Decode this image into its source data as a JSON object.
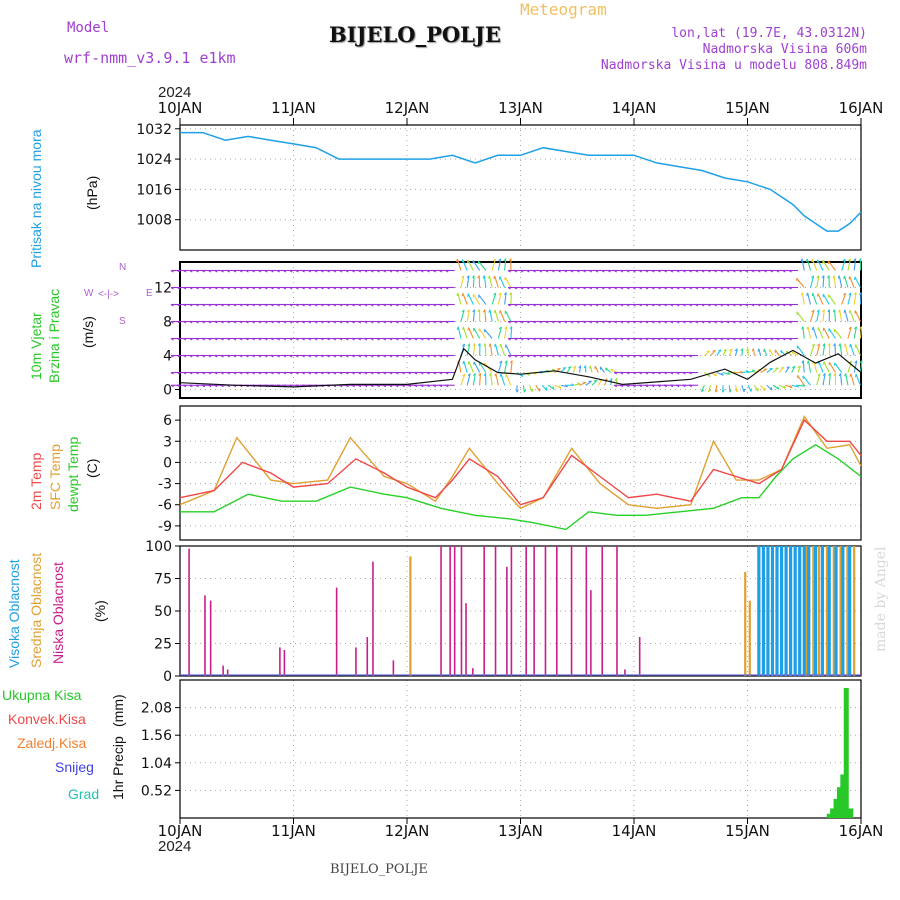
{
  "header": {
    "model_label": "Model",
    "model_name": "wrf-nmm_v3.9.1  e1km",
    "title": "BIJELO_POLJE",
    "subtitle": "Meteogram",
    "lonlat": "lon,lat (19.7E, 43.0312N)",
    "elevation": "Nadmorska Visina 606m",
    "model_elevation": "Nadmorska Visina u modelu 808.849m",
    "credit": "made by Angel",
    "footer": "BIJELO_POLJE",
    "year_top": "2024",
    "year_bottom": "2024"
  },
  "colors": {
    "pressure": "#1ea0e6",
    "wind_purple": "#9a30d8",
    "temp2m": "#f04848",
    "sfc": "#e0a030",
    "dewpt": "#28d028",
    "cloud_high": "#1ea0e6",
    "cloud_mid": "#e0a030",
    "cloud_low": "#c81e8c",
    "precip": "#28c828"
  },
  "chart_data": [
    {
      "type": "line",
      "ylabel": "Pritisak na nivou mora",
      "unit": "(hPa)",
      "yticks": [
        1008,
        1016,
        1024,
        1032
      ],
      "ylim": [
        1000,
        1033
      ],
      "x_labels": [
        "10JAN",
        "11JAN",
        "12JAN",
        "13JAN",
        "14JAN",
        "15JAN",
        "16JAN"
      ],
      "xlim": [
        0,
        6
      ],
      "series": [
        {
          "x": [
            0,
            0.2,
            0.4,
            0.6,
            0.8,
            1.0,
            1.2,
            1.4,
            1.6,
            1.8,
            2.0,
            2.2,
            2.4,
            2.6,
            2.8,
            3.0,
            3.2,
            3.4,
            3.6,
            3.8,
            4.0,
            4.2,
            4.4,
            4.6,
            4.8,
            5.0,
            5.2,
            5.4,
            5.5,
            5.6,
            5.7,
            5.8,
            5.9,
            6.0
          ],
          "y": [
            1031,
            1031,
            1029,
            1030,
            1029,
            1028,
            1027,
            1024,
            1024,
            1024,
            1024,
            1024,
            1025,
            1023,
            1025,
            1025,
            1027,
            1026,
            1025,
            1025,
            1025,
            1023,
            1022,
            1021,
            1019,
            1018,
            1016,
            1012,
            1009,
            1007,
            1005,
            1005,
            1007,
            1010
          ]
        }
      ]
    },
    {
      "type": "line",
      "ylabel": "10m Vjetar",
      "ylabel2": "Brzina i Pravac",
      "unit": "(m/s)",
      "yticks": [
        0,
        4,
        8,
        12
      ],
      "ylim": [
        -1,
        15
      ],
      "compass": {
        "n": "N",
        "s": "S",
        "w": "W",
        "e": "E"
      },
      "series": [
        {
          "x": [
            0,
            0.5,
            1.0,
            1.5,
            2.0,
            2.4,
            2.5,
            2.6,
            2.8,
            3.0,
            3.3,
            3.6,
            3.9,
            4.2,
            4.5,
            4.8,
            5.0,
            5.2,
            5.4,
            5.6,
            5.8,
            6.0
          ],
          "y": [
            0.8,
            0.5,
            0.3,
            0.6,
            0.6,
            1.2,
            4.8,
            3.5,
            2.0,
            1.8,
            2.2,
            1.5,
            0.6,
            0.9,
            1.2,
            2.4,
            1.2,
            3.2,
            4.6,
            3.1,
            4.2,
            2.0
          ]
        }
      ]
    },
    {
      "type": "line",
      "ylabel": "2m Temp",
      "ylabel2": "SFC Temp",
      "ylabel3": "dewpt Temp",
      "unit": "(C)",
      "yticks": [
        -9,
        -6,
        -3,
        0,
        3,
        6
      ],
      "ylim": [
        -11,
        8
      ],
      "series": [
        {
          "name": "2m Temp",
          "x": [
            0,
            0.3,
            0.55,
            0.8,
            1.0,
            1.3,
            1.55,
            1.8,
            2.0,
            2.25,
            2.4,
            2.55,
            2.8,
            3.0,
            3.2,
            3.45,
            3.7,
            3.95,
            4.2,
            4.5,
            4.7,
            4.9,
            5.1,
            5.3,
            5.5,
            5.7,
            5.9,
            6.0
          ],
          "y": [
            -5,
            -4,
            0,
            -1.5,
            -3.5,
            -3,
            0.5,
            -1.5,
            -3.5,
            -5,
            -2.5,
            0.5,
            -2,
            -6,
            -5,
            1,
            -2,
            -5,
            -4.5,
            -5.5,
            -1,
            -2,
            -3,
            -1,
            6,
            3,
            3,
            1
          ]
        },
        {
          "name": "SFC Temp",
          "x": [
            0,
            0.3,
            0.5,
            0.8,
            1.0,
            1.3,
            1.5,
            1.8,
            2.0,
            2.25,
            2.4,
            2.55,
            2.8,
            3.0,
            3.2,
            3.45,
            3.7,
            3.95,
            4.2,
            4.5,
            4.7,
            4.9,
            5.1,
            5.3,
            5.5,
            5.7,
            5.9,
            6.0
          ],
          "y": [
            -6,
            -4,
            3.5,
            -2.5,
            -3,
            -2.5,
            3.5,
            -2,
            -3,
            -5.5,
            -2,
            2,
            -3,
            -6.5,
            -5,
            2,
            -3,
            -6,
            -6.5,
            -6,
            3,
            -2.5,
            -2.5,
            -1,
            6.5,
            2,
            2.5,
            -0.5
          ]
        },
        {
          "name": "dewpt Temp",
          "x": [
            0,
            0.3,
            0.6,
            0.9,
            1.2,
            1.5,
            1.8,
            2.0,
            2.3,
            2.6,
            2.9,
            3.1,
            3.4,
            3.6,
            3.85,
            4.1,
            4.4,
            4.7,
            4.95,
            5.1,
            5.25,
            5.4,
            5.6,
            5.8,
            6.0
          ],
          "y": [
            -7,
            -7,
            -4.5,
            -5.5,
            -5.5,
            -3.5,
            -4.5,
            -5,
            -6.5,
            -7.5,
            -8,
            -8.5,
            -9.5,
            -7,
            -7.5,
            -7.5,
            -7,
            -6.5,
            -5,
            -5,
            -2,
            0.5,
            2.5,
            0.5,
            -2
          ]
        }
      ]
    },
    {
      "type": "bar",
      "ylabel": "Visoka Oblacnost",
      "ylabel2": "Srednja Oblacnost",
      "ylabel3": "Niska Oblacnost",
      "unit": "(%)",
      "yticks": [
        0,
        25,
        50,
        75,
        100
      ],
      "ylim": [
        0,
        100
      ],
      "series": [
        {
          "name": "Niska Oblacnost",
          "x": [
            0.08,
            0.22,
            0.27,
            0.38,
            0.42,
            0.88,
            0.92,
            1.38,
            1.55,
            1.65,
            1.7,
            1.88,
            2.3,
            2.38,
            2.42,
            2.48,
            2.52,
            2.58,
            2.68,
            2.78,
            2.88,
            2.92,
            3.05,
            3.12,
            3.22,
            3.32,
            3.45,
            3.58,
            3.62,
            3.72,
            3.85,
            3.92,
            4.05
          ],
          "y": [
            98,
            62,
            58,
            8,
            5,
            22,
            20,
            68,
            22,
            30,
            88,
            12,
            100,
            100,
            100,
            100,
            56,
            6,
            100,
            100,
            84,
            100,
            100,
            100,
            100,
            100,
            100,
            100,
            66,
            100,
            100,
            5,
            30
          ]
        },
        {
          "name": "Srednja Oblacnost",
          "x": [
            2.03,
            4.98,
            5.02,
            5.52,
            5.58,
            5.63,
            5.7,
            5.76,
            5.82,
            5.88,
            5.94
          ],
          "y": [
            92,
            80,
            58,
            100,
            100,
            100,
            100,
            100,
            100,
            100,
            100
          ]
        },
        {
          "name": "Visoka Oblacnost",
          "x": [
            5.1,
            5.14,
            5.18,
            5.22,
            5.26,
            5.3,
            5.34,
            5.38,
            5.42,
            5.46,
            5.5,
            5.54,
            5.6,
            5.66,
            5.72,
            5.78,
            5.84,
            5.9
          ],
          "y": [
            100,
            100,
            100,
            100,
            100,
            100,
            100,
            100,
            100,
            100,
            100,
            100,
            100,
            100,
            100,
            100,
            100,
            100
          ]
        }
      ]
    },
    {
      "type": "bar",
      "ylabel": "1hr Precip",
      "unit": "(mm)",
      "yticks": [
        0.52,
        1.04,
        1.56,
        2.08
      ],
      "ylim": [
        0,
        2.6
      ],
      "legend": [
        "Ukupna Kisa",
        "Konvek.Kisa",
        "Zaledj.Kisa",
        "Snijeg",
        "Grad"
      ],
      "series": [
        {
          "name": "Ukupna Kisa",
          "x": [
            5.72,
            5.75,
            5.78,
            5.81,
            5.84,
            5.87,
            5.91
          ],
          "y": [
            0.08,
            0.18,
            0.36,
            0.58,
            0.82,
            2.45,
            0.18
          ]
        }
      ]
    }
  ]
}
